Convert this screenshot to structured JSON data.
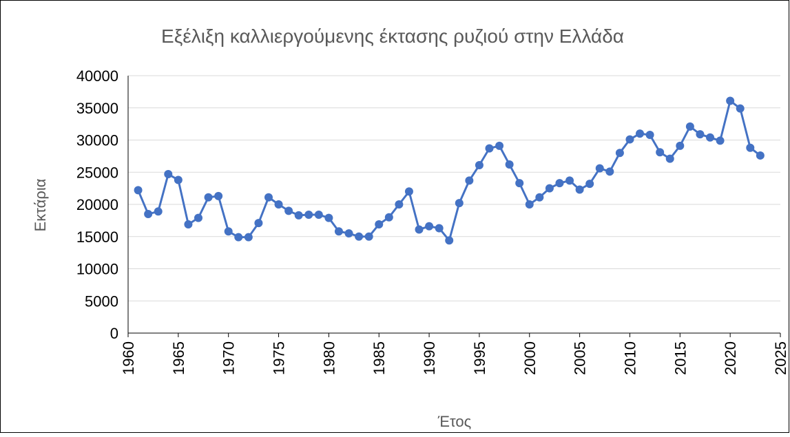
{
  "chart_data": {
    "type": "line",
    "title": "Εξέλιξη καλλιεργούμενης έκτασης ρυζιού στην Ελλάδα",
    "x_label": "Έτος",
    "y_label": "Εκτάρια",
    "x": [
      1961,
      1962,
      1963,
      1964,
      1965,
      1966,
      1967,
      1968,
      1969,
      1970,
      1971,
      1972,
      1973,
      1974,
      1975,
      1976,
      1977,
      1978,
      1979,
      1980,
      1981,
      1982,
      1983,
      1984,
      1985,
      1986,
      1987,
      1988,
      1989,
      1990,
      1991,
      1992,
      1993,
      1994,
      1995,
      1996,
      1997,
      1998,
      1999,
      2000,
      2001,
      2002,
      2003,
      2004,
      2005,
      2006,
      2007,
      2008,
      2009,
      2010,
      2011,
      2012,
      2013,
      2014,
      2015,
      2016,
      2017,
      2018,
      2019,
      2020,
      2021,
      2022,
      2023
    ],
    "series": [
      {
        "name": "Εκτάρια",
        "color": "#4472c4",
        "values": [
          22200,
          18500,
          18900,
          24700,
          23800,
          16900,
          17900,
          21100,
          21300,
          15800,
          14900,
          14900,
          17100,
          21100,
          20000,
          19000,
          18300,
          18400,
          18400,
          17900,
          15800,
          15500,
          15000,
          15000,
          16900,
          18000,
          20000,
          22000,
          16100,
          16600,
          16300,
          14400,
          20200,
          23700,
          26100,
          28700,
          29100,
          26200,
          23300,
          20000,
          21100,
          22500,
          23300,
          23700,
          22300,
          23200,
          25600,
          25100,
          28000,
          30100,
          31000,
          30800,
          28100,
          27100,
          29100,
          32100,
          30900,
          30400,
          29900,
          36100,
          34900,
          28800,
          27600
        ]
      }
    ],
    "xlim": [
      1960,
      2025
    ],
    "xticks": [
      1960,
      1965,
      1970,
      1975,
      1980,
      1985,
      1990,
      1995,
      2000,
      2005,
      2010,
      2015,
      2020,
      2025
    ],
    "ylim": [
      0,
      40000
    ],
    "yticks": [
      0,
      5000,
      10000,
      15000,
      20000,
      25000,
      30000,
      35000,
      40000
    ],
    "grid": true
  }
}
